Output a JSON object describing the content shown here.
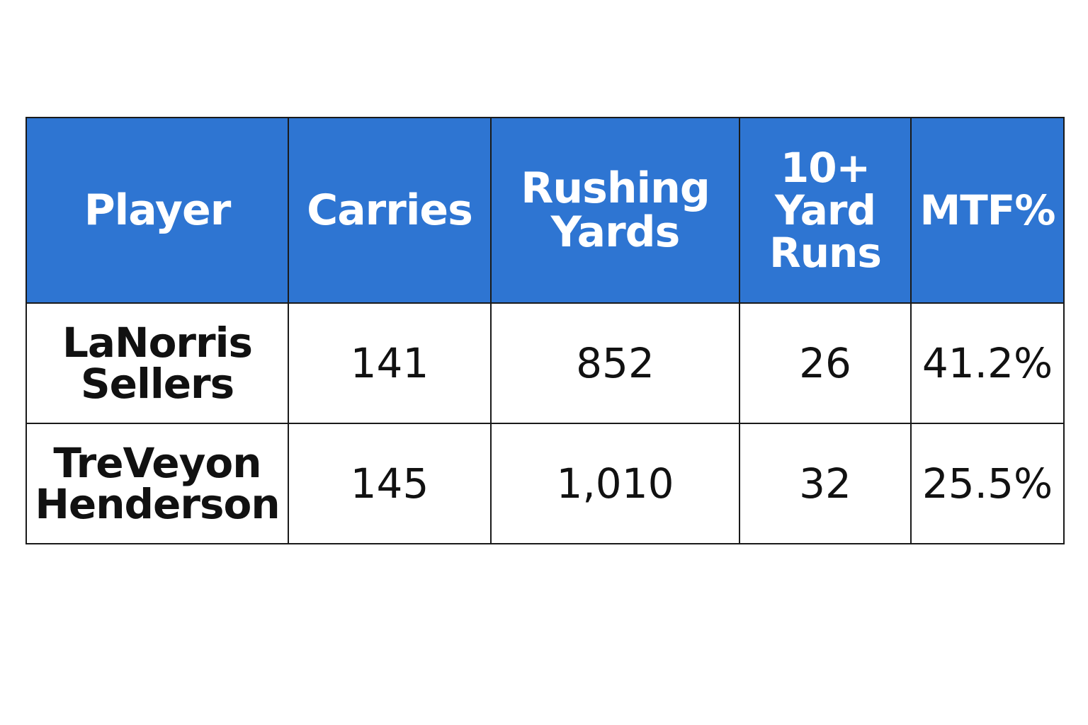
{
  "chart_data": {
    "type": "table",
    "columns": [
      "Player",
      "Carries",
      "Rushing Yards",
      "10+ Yard Runs",
      "MTF%"
    ],
    "header_lines": [
      [
        "Player"
      ],
      [
        "Carries"
      ],
      [
        "Rushing",
        "Yards"
      ],
      [
        "10+",
        "Yard",
        "Runs"
      ],
      [
        "MTF%"
      ]
    ],
    "rows": [
      {
        "player_lines": [
          "LaNorris",
          "Sellers"
        ],
        "carries": "141",
        "rushing_yards": "852",
        "ten_plus_runs": "26",
        "mtf_pct": "41.2%"
      },
      {
        "player_lines": [
          "TreVeyon",
          "Henderson"
        ],
        "carries": "145",
        "rushing_yards": "1,010",
        "ten_plus_runs": "32",
        "mtf_pct": "25.5%"
      }
    ]
  },
  "colors": {
    "header_bg": "#2e75d2",
    "header_text": "#ffffff",
    "border": "#1a1a1a",
    "cell_text": "#111111"
  }
}
